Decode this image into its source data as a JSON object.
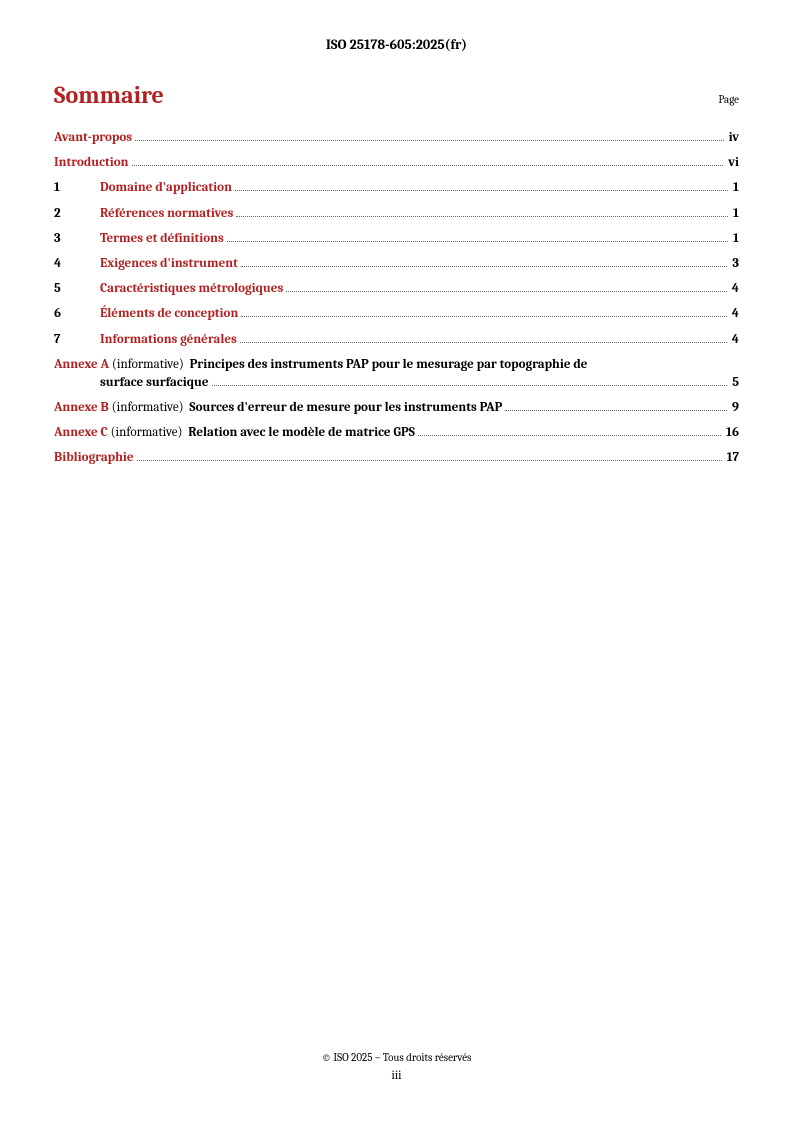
{
  "header": "ISO 25178-605:2025(fr)",
  "toc_title": "Sommaire",
  "page_label": "Page",
  "entries": [
    {
      "type": "simple",
      "text": "Avant-propos",
      "page": "iv"
    },
    {
      "type": "simple",
      "text": "Introduction",
      "page": "vi"
    },
    {
      "type": "numbered",
      "number": "1",
      "text": "Domaine d'application",
      "page": "1"
    },
    {
      "type": "numbered",
      "number": "2",
      "text": "Références normatives",
      "page": "1"
    },
    {
      "type": "numbered",
      "number": "3",
      "text": "Termes et définitions",
      "page": "1"
    },
    {
      "type": "numbered",
      "number": "4",
      "text": "Exigences d'instrument",
      "page": "3"
    },
    {
      "type": "numbered",
      "number": "5",
      "text": "Caractéristiques métrologiques",
      "page": "4"
    },
    {
      "type": "numbered",
      "number": "6",
      "text": "Éléments de conception",
      "page": "4"
    },
    {
      "type": "numbered",
      "number": "7",
      "text": "Informations générales",
      "page": "4"
    },
    {
      "type": "annex-wrap",
      "label": "Annexe A",
      "info": "(informative)",
      "title_line1": "Principes des instruments PAP pour le mesurage par topographie de",
      "title_line2": "surface surfacique",
      "page": "5"
    },
    {
      "type": "annex",
      "label": "Annexe B",
      "info": "(informative)",
      "title": "Sources d'erreur de mesure pour les instruments PAP",
      "page": "9"
    },
    {
      "type": "annex",
      "label": "Annexe C",
      "info": "(informative)",
      "title": "Relation avec le modèle de matrice GPS",
      "page": "16"
    },
    {
      "type": "simple",
      "text": "Bibliographie",
      "page": "17"
    }
  ],
  "footer": {
    "copyright": "© ISO 2025 – Tous droits réservés",
    "page_number": "iii"
  },
  "colors": {
    "accent": "#b22222",
    "text": "#000000",
    "background": "#ffffff"
  }
}
